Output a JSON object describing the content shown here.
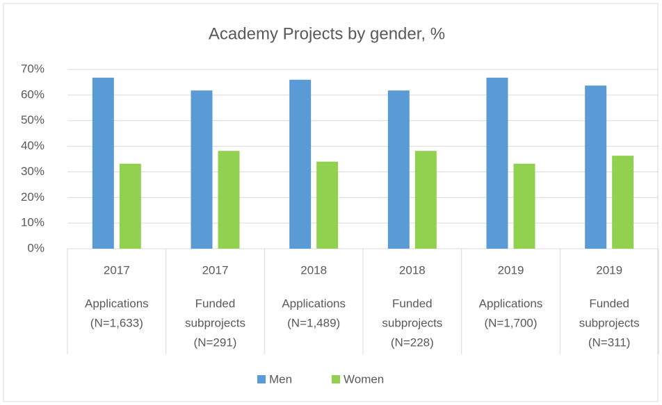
{
  "chart_data": {
    "type": "bar",
    "title": "Academy Projects by gender, %",
    "categories": [
      {
        "year": "2017",
        "lines": [
          "Applications",
          "(N=1,633)"
        ]
      },
      {
        "year": "2017",
        "lines": [
          "Funded",
          "subprojects",
          "(N=291)"
        ]
      },
      {
        "year": "2018",
        "lines": [
          "Applications",
          "(N=1,489)"
        ]
      },
      {
        "year": "2018",
        "lines": [
          "Funded",
          "subprojects",
          "(N=228)"
        ]
      },
      {
        "year": "2019",
        "lines": [
          "Applications",
          "(N=1,700)"
        ]
      },
      {
        "year": "2019",
        "lines": [
          "Funded",
          "subprojects",
          "(N=311)"
        ]
      }
    ],
    "series": [
      {
        "name": "Men",
        "color": "#5b9bd5",
        "values": [
          66.8,
          61.8,
          66,
          61.8,
          66.8,
          63.7
        ]
      },
      {
        "name": "Women",
        "color": "#92d050",
        "values": [
          33.2,
          38.2,
          34,
          38.2,
          33.2,
          36.3
        ]
      }
    ],
    "ylim": [
      0,
      70
    ],
    "yticks": [
      {
        "value": 0,
        "label": "0%"
      },
      {
        "value": 10,
        "label": "10%"
      },
      {
        "value": 20,
        "label": "20%"
      },
      {
        "value": 30,
        "label": "30%"
      },
      {
        "value": 40,
        "label": "40%"
      },
      {
        "value": 50,
        "label": "50%"
      },
      {
        "value": 60,
        "label": "60%"
      },
      {
        "value": 70,
        "label": "70%"
      }
    ],
    "grid": true,
    "legend": "bottom"
  }
}
